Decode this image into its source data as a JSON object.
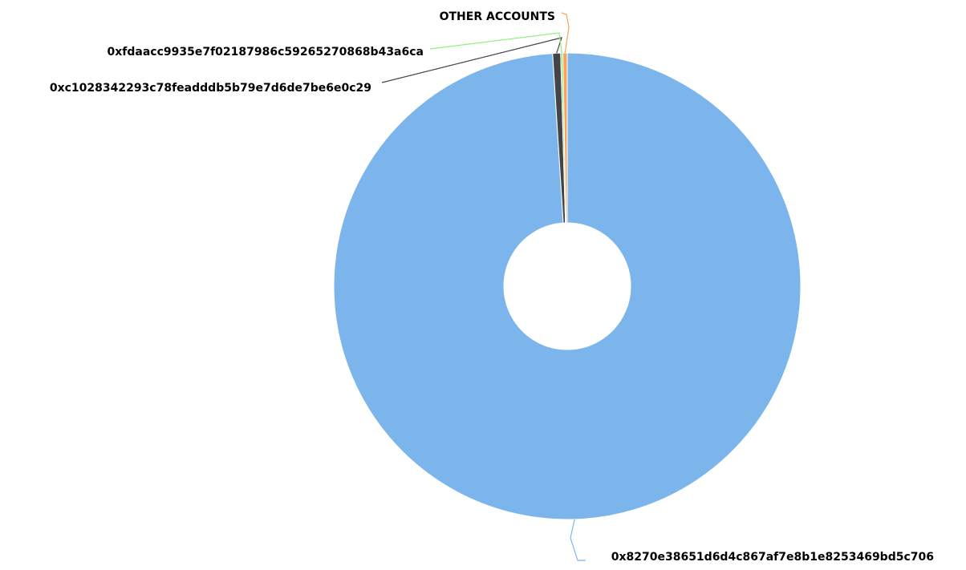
{
  "chart_data": {
    "type": "pie",
    "variant": "donut",
    "title": "",
    "legend": "none",
    "slices": [
      {
        "label": "0x8270e38651d6d4c867af7e8b1e8253469bd5c706",
        "value": 99.0,
        "color": "#7cb5ec"
      },
      {
        "label": "0xc1028342293c78feadddb5b79e7d6de7be6e0c29",
        "value": 0.55,
        "color": "#434348"
      },
      {
        "label": "0xfdaacc9935e7f02187986c59265270868b43a6ca",
        "value": 0.15,
        "color": "#90ed7d"
      },
      {
        "label": "OTHER ACCOUNTS",
        "value": 0.3,
        "color": "#f7a35c"
      }
    ]
  }
}
